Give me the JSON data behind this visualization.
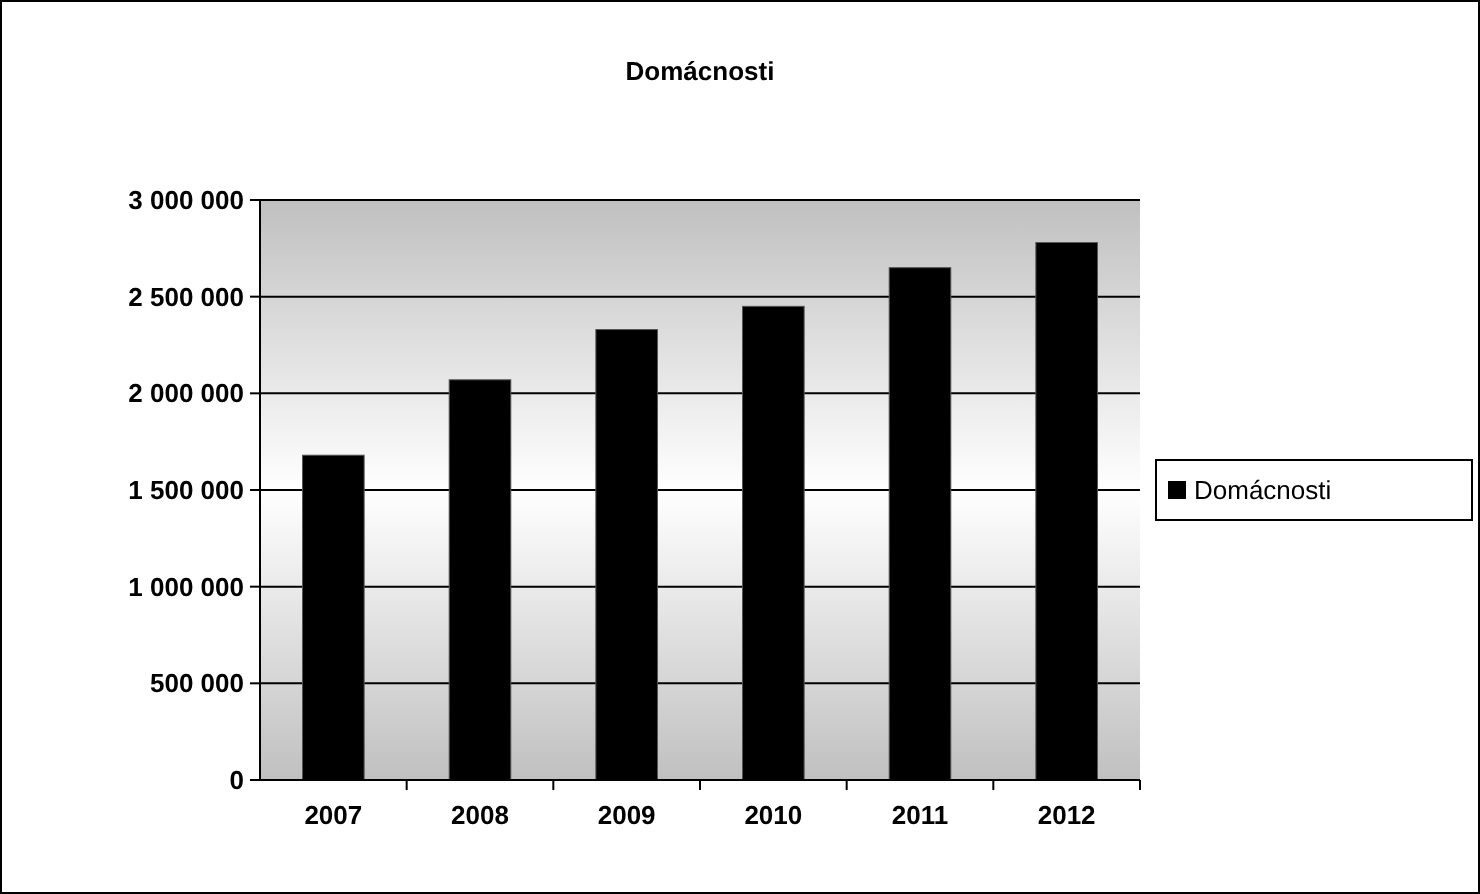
{
  "chart_data": {
    "type": "bar",
    "title": "Domácnosti",
    "categories": [
      "2007",
      "2008",
      "2009",
      "2010",
      "2011",
      "2012"
    ],
    "series": [
      {
        "name": "Domácnosti",
        "color": "#000000",
        "values": [
          1680000,
          2070000,
          2330000,
          2450000,
          2650000,
          2780000
        ]
      }
    ],
    "ylim": [
      0,
      3000000
    ],
    "yticks": [
      {
        "value": 0,
        "label": "0"
      },
      {
        "value": 500000,
        "label": "500 000"
      },
      {
        "value": 1000000,
        "label": "1 000 000"
      },
      {
        "value": 1500000,
        "label": "1 500 000"
      },
      {
        "value": 2000000,
        "label": "2 000 000"
      },
      {
        "value": 2500000,
        "label": "2 500 000"
      },
      {
        "value": 3000000,
        "label": "3 000 000"
      }
    ],
    "grid": "y",
    "legend": "right"
  }
}
